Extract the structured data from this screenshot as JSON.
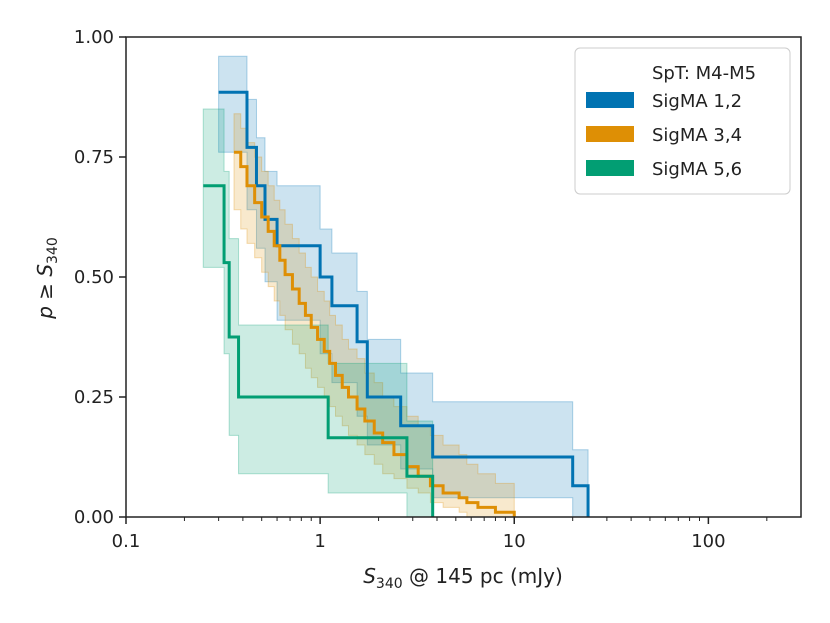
{
  "chart_data": {
    "type": "line",
    "subtype": "step-with-confidence-band",
    "x_scale": "log",
    "xlim": [
      0.1,
      300
    ],
    "ylim": [
      0,
      1
    ],
    "xlabel": {
      "sym": "S",
      "sub": "340",
      "rest": " @ 145 pc (mJy)"
    },
    "ylabel": {
      "prefix": "p ≥ ",
      "sym": "S",
      "sub": "340"
    },
    "x_ticks": [
      {
        "value": 0.1,
        "label": "0.1"
      },
      {
        "value": 1,
        "label": "1"
      },
      {
        "value": 10,
        "label": "10"
      },
      {
        "value": 100,
        "label": "100"
      }
    ],
    "y_ticks": [
      {
        "value": 0,
        "label": "0.00"
      },
      {
        "value": 0.25,
        "label": "0.25"
      },
      {
        "value": 0.5,
        "label": "0.50"
      },
      {
        "value": 0.75,
        "label": "0.75"
      },
      {
        "value": 1.0,
        "label": "1.00"
      }
    ],
    "legend": {
      "title": "SpT: M4-M5",
      "position": "top-right"
    },
    "series": [
      {
        "name": "SigMA 1,2",
        "color": "#0173b2",
        "x": [
          0.3,
          0.42,
          0.47,
          0.52,
          0.6,
          1.0,
          1.15,
          1.55,
          1.75,
          2.6,
          3.8,
          20,
          24
        ],
        "y": [
          0.885,
          0.77,
          0.69,
          0.62,
          0.565,
          0.5,
          0.44,
          0.365,
          0.25,
          0.19,
          0.125,
          0.065,
          0.0
        ],
        "lower": [
          0.76,
          0.64,
          0.56,
          0.49,
          0.41,
          0.34,
          0.28,
          0.21,
          0.15,
          0.1,
          0.04,
          0.0,
          0.0
        ],
        "upper": [
          0.96,
          0.87,
          0.79,
          0.72,
          0.69,
          0.6,
          0.55,
          0.47,
          0.37,
          0.3,
          0.24,
          0.14,
          0.06
        ]
      },
      {
        "name": "SigMA 3,4",
        "color": "#de8f05",
        "x": [
          0.36,
          0.39,
          0.42,
          0.46,
          0.5,
          0.54,
          0.58,
          0.62,
          0.66,
          0.72,
          0.78,
          0.84,
          0.9,
          0.97,
          1.05,
          1.12,
          1.2,
          1.3,
          1.4,
          1.55,
          1.7,
          1.9,
          2.1,
          2.4,
          2.8,
          3.2,
          3.7,
          4.3,
          5.2,
          5.7,
          6.5,
          8.0,
          10.0
        ],
        "y": [
          0.76,
          0.73,
          0.69,
          0.655,
          0.625,
          0.595,
          0.565,
          0.535,
          0.505,
          0.475,
          0.445,
          0.42,
          0.395,
          0.37,
          0.345,
          0.32,
          0.295,
          0.27,
          0.25,
          0.225,
          0.2,
          0.175,
          0.155,
          0.13,
          0.105,
          0.085,
          0.065,
          0.05,
          0.04,
          0.03,
          0.02,
          0.01,
          0.0
        ],
        "lower": [
          0.64,
          0.6,
          0.57,
          0.54,
          0.51,
          0.48,
          0.45,
          0.42,
          0.39,
          0.36,
          0.34,
          0.31,
          0.29,
          0.27,
          0.25,
          0.23,
          0.21,
          0.19,
          0.17,
          0.15,
          0.13,
          0.11,
          0.09,
          0.08,
          0.06,
          0.05,
          0.03,
          0.02,
          0.01,
          0.0,
          0.0,
          0.0,
          0.0
        ],
        "upper": [
          0.84,
          0.81,
          0.78,
          0.75,
          0.72,
          0.69,
          0.66,
          0.64,
          0.61,
          0.58,
          0.55,
          0.52,
          0.5,
          0.47,
          0.45,
          0.42,
          0.4,
          0.37,
          0.35,
          0.33,
          0.3,
          0.28,
          0.25,
          0.23,
          0.21,
          0.19,
          0.17,
          0.15,
          0.13,
          0.11,
          0.09,
          0.07,
          0.05
        ]
      },
      {
        "name": "SigMA 5,6",
        "color": "#029e73",
        "x": [
          0.25,
          0.32,
          0.34,
          0.38,
          0.6,
          1.1,
          1.35,
          2.8,
          3.8
        ],
        "y": [
          0.69,
          0.53,
          0.375,
          0.25,
          0.25,
          0.165,
          0.165,
          0.085,
          0.0
        ],
        "lower": [
          0.52,
          0.34,
          0.17,
          0.09,
          0.09,
          0.05,
          0.05,
          0.0,
          0.0
        ],
        "upper": [
          0.85,
          0.72,
          0.58,
          0.4,
          0.4,
          0.32,
          0.32,
          0.2,
          0.12
        ]
      }
    ]
  }
}
